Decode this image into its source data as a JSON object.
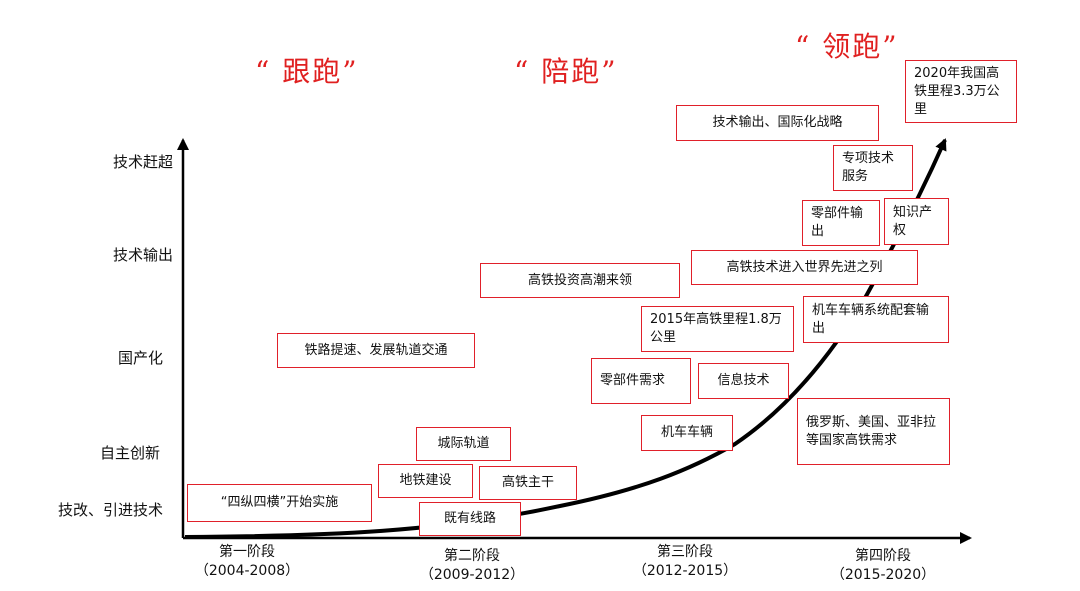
{
  "phases": [
    "“ 跟跑”",
    "“ 陪跑”",
    "“ 领跑”"
  ],
  "y_levels": [
    "技术赶超",
    "技术输出",
    "国产化",
    "自主创新",
    "技改、引进技术"
  ],
  "x_stages": [
    {
      "name": "第一阶段",
      "period": "（2004-2008）"
    },
    {
      "name": "第二阶段",
      "period": "（2009-2012）"
    },
    {
      "name": "第三阶段",
      "period": "（2012-2015）"
    },
    {
      "name": "第四阶段",
      "period": "（2015-2020）"
    }
  ],
  "boxes": {
    "sizong": "“四纵四横”开始实施",
    "railway_speedup": "铁路提速、发展轨道交通",
    "intercity": "城际轨道",
    "metro": "地铁建设",
    "hsr_trunk": "高铁主干",
    "existing_lines": "既有线路",
    "hsr_investment": "高铁投资高潮来领",
    "mileage_2015": "2015年高铁里程1.8万公里",
    "parts_demand": "零部件需求",
    "info_tech": "信息技术",
    "locomotive": "机车车辆",
    "world_advanced": "高铁技术进入世界先进之列",
    "loco_export": "机车车辆系统配套输出",
    "countries_demand": "俄罗斯、美国、亚非拉等国家高铁需求",
    "tech_export_strategy": "技术输出、国际化战略",
    "special_service": "专项技术服务",
    "parts_export": "零部件输出",
    "ip": "知识产权",
    "mileage_2020": "2020年我国高铁里程3.3万公里"
  },
  "colors": {
    "accent": "#e02020",
    "axis": "#000000",
    "box_border": "#e0202a"
  }
}
